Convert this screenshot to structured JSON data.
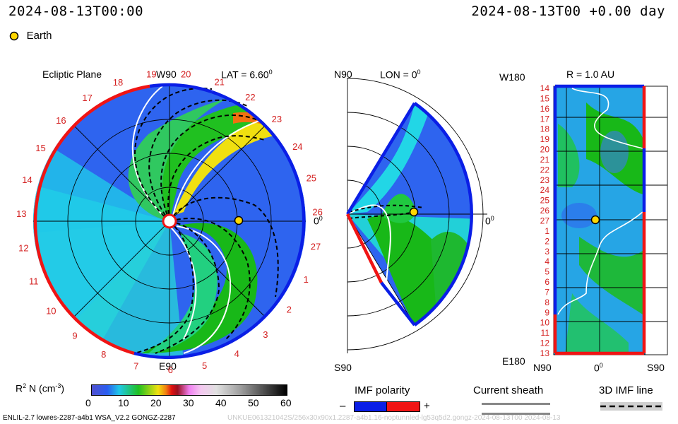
{
  "header": {
    "left_time": "2024-08-13T00:00",
    "right_time": "2024-08-13T00 +0.00 day",
    "legend_earth": "Earth"
  },
  "panels": {
    "ecliptic": {
      "title": "Ecliptic Plane",
      "lat_label": "LAT = 6.60",
      "lat_sup": "0",
      "top_label": "W90",
      "bottom_label": "E90",
      "right_label": "0",
      "right_sup": "0",
      "rotation_numbers": [
        "19",
        "20",
        "21",
        "22",
        "23",
        "24",
        "25",
        "26",
        "27",
        "1",
        "2",
        "3",
        "4",
        "5",
        "6",
        "7",
        "8",
        "9",
        "10",
        "11",
        "12",
        "13",
        "14",
        "15",
        "16",
        "17",
        "18"
      ]
    },
    "meridional": {
      "top_label": "N90",
      "lon_label": "LON = 0",
      "lon_sup": "0",
      "bottom_label": "S90",
      "right_label": "0",
      "right_sup": "0"
    },
    "radial": {
      "title": "R = 1.0 AU",
      "top_left": "W180",
      "bottom_left": "E180",
      "x_left": "N90",
      "x_mid": "0",
      "x_mid_sup": "0",
      "x_right": "S90",
      "y_numbers": [
        "14",
        "15",
        "16",
        "17",
        "18",
        "19",
        "20",
        "21",
        "22",
        "23",
        "24",
        "25",
        "26",
        "27",
        "1",
        "2",
        "3",
        "4",
        "5",
        "6",
        "7",
        "8",
        "9",
        "10",
        "11",
        "12",
        "13"
      ]
    }
  },
  "colorbar": {
    "label": "R",
    "label_sup": "2",
    "label_rest": " N (cm",
    "label_exp": "-3",
    "label_end": ")",
    "ticks": [
      "0",
      "10",
      "20",
      "30",
      "40",
      "50",
      "60"
    ]
  },
  "legend": {
    "imf_title": "IMF polarity",
    "imf_minus": "–",
    "imf_plus": "+",
    "current_sheath": "Current sheath",
    "imf_line": "3D IMF line"
  },
  "footer": {
    "left": "ENLIL-2.7 lowres-2287-a4b1 WSA_V2.2 GONGZ-2287",
    "right": "UNKUE061321042S/256x30x90x1.2287-a4b1.16-noptunnled-lg53q5d2.gongz-2024-08-13T00 2024-08-13"
  },
  "colors": {
    "imf_negative": "#0a1ee6",
    "imf_positive": "#f01414",
    "earth": "#ffd700",
    "label_red": "#d42020"
  }
}
